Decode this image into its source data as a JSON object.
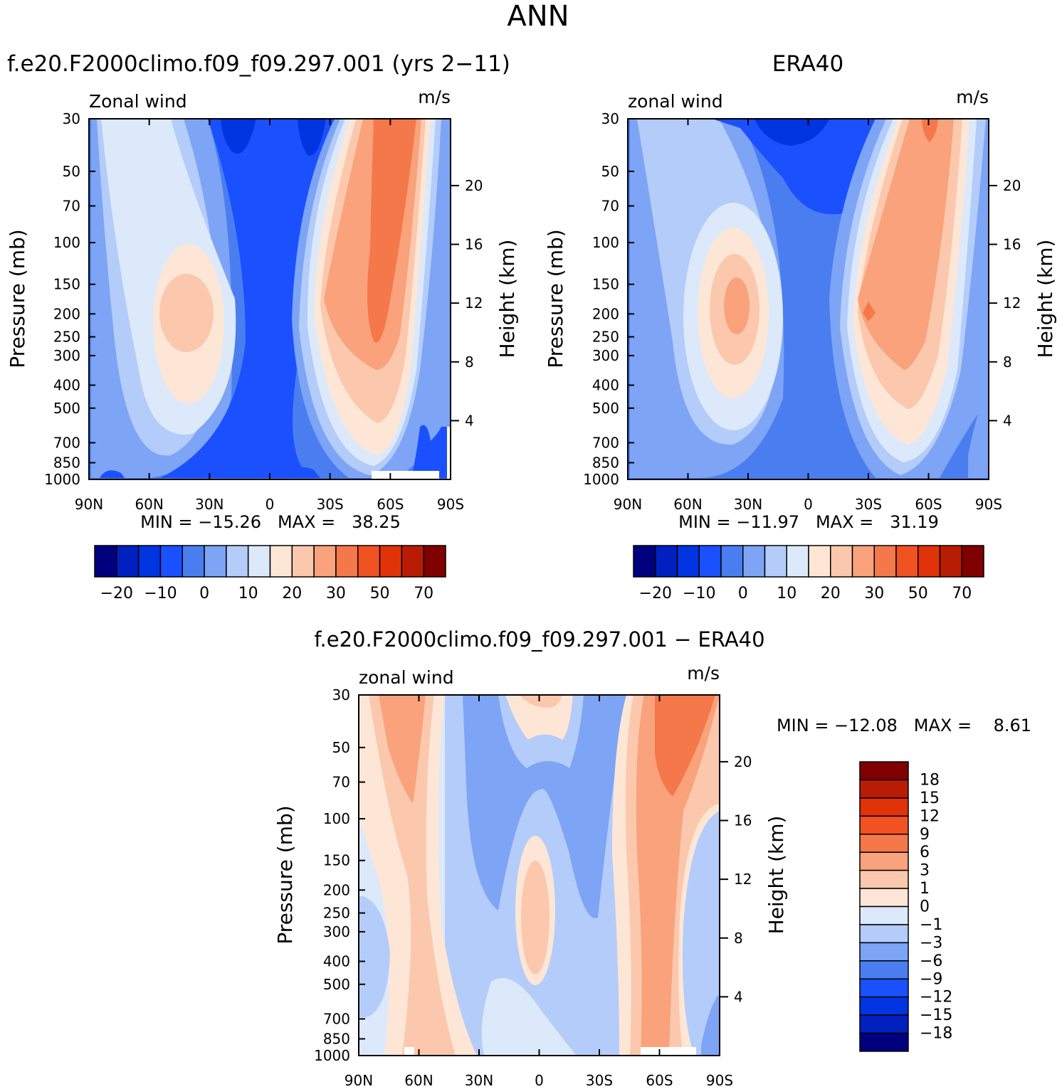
{
  "main_title": "ANN",
  "panels": [
    {
      "id": "model",
      "title": "f.e20.F2000climo.f09_f09.297.001 (yrs 2−11)",
      "var_label": "Zonal wind",
      "units": "m/s",
      "ylabel": "Pressure (mb)",
      "ylabel_right": "Height (km)",
      "stats": "MIN = −15.26   MAX =   38.25"
    },
    {
      "id": "obs",
      "title": "ERA40",
      "var_label": "zonal wind",
      "units": "m/s",
      "ylabel": "Pressure (mb)",
      "ylabel_right": "Height (km)",
      "stats": "MIN = −11.97   MAX =   31.19"
    },
    {
      "id": "diff",
      "title": "f.e20.F2000climo.f09_f09.297.001 − ERA40",
      "var_label": "zonal wind",
      "units": "m/s",
      "ylabel": "Pressure (mb)",
      "ylabel_right": "Height (km)",
      "stats": "MIN = −12.08   MAX =    8.61"
    }
  ],
  "chart_data": [
    {
      "type": "heatmap",
      "panel": "model",
      "x_ticks": [
        "90N",
        "60N",
        "30N",
        "0",
        "30S",
        "60S",
        "90S"
      ],
      "y_ticks": [
        "30",
        "50",
        "70",
        "100",
        "150",
        "200",
        "250",
        "300",
        "400",
        "500",
        "700",
        "850",
        "1000"
      ],
      "height_ticks": [
        "20",
        "16",
        "12",
        "8",
        "4"
      ],
      "y_scale": "log",
      "ylim": [
        1000,
        30
      ],
      "colorbar": {
        "orientation": "horizontal",
        "tick_labels": [
          "−20",
          "−10",
          "0",
          "10",
          "20",
          "30",
          "50",
          "70"
        ],
        "colors": [
          "#00007f",
          "#0020c0",
          "#0034e0",
          "#1a50ff",
          "#4a7ef0",
          "#7da4f5",
          "#b3ccfa",
          "#dce9fb",
          "#fde6d6",
          "#fcc8ad",
          "#f9a27c",
          "#f5784a",
          "#f05222",
          "#e0330a",
          "#b81c05",
          "#800000"
        ]
      },
      "min": -15.26,
      "max": 38.25
    },
    {
      "type": "heatmap",
      "panel": "obs",
      "x_ticks": [
        "90N",
        "60N",
        "30N",
        "0",
        "30S",
        "60S",
        "90S"
      ],
      "y_ticks": [
        "30",
        "50",
        "70",
        "100",
        "150",
        "200",
        "250",
        "300",
        "400",
        "500",
        "700",
        "850",
        "1000"
      ],
      "height_ticks": [
        "20",
        "16",
        "12",
        "8",
        "4"
      ],
      "y_scale": "log",
      "ylim": [
        1000,
        30
      ],
      "colorbar": {
        "orientation": "horizontal",
        "tick_labels": [
          "−20",
          "−10",
          "0",
          "10",
          "20",
          "30",
          "50",
          "70"
        ],
        "colors": [
          "#00007f",
          "#0020c0",
          "#0034e0",
          "#1a50ff",
          "#4a7ef0",
          "#7da4f5",
          "#b3ccfa",
          "#dce9fb",
          "#fde6d6",
          "#fcc8ad",
          "#f9a27c",
          "#f5784a",
          "#f05222",
          "#e0330a",
          "#b81c05",
          "#800000"
        ]
      },
      "min": -11.97,
      "max": 31.19
    },
    {
      "type": "heatmap",
      "panel": "diff",
      "x_ticks": [
        "90N",
        "60N",
        "30N",
        "0",
        "30S",
        "60S",
        "90S"
      ],
      "y_ticks": [
        "30",
        "50",
        "70",
        "100",
        "150",
        "200",
        "250",
        "300",
        "400",
        "500",
        "700",
        "850",
        "1000"
      ],
      "height_ticks": [
        "20",
        "16",
        "12",
        "8",
        "4"
      ],
      "y_scale": "log",
      "ylim": [
        1000,
        30
      ],
      "colorbar": {
        "orientation": "vertical",
        "tick_labels": [
          "18",
          "15",
          "12",
          "9",
          "6",
          "3",
          "1",
          "0",
          "−1",
          "−3",
          "−6",
          "−9",
          "−12",
          "−15",
          "−18"
        ],
        "colors": [
          "#800000",
          "#b81c05",
          "#e0330a",
          "#f05222",
          "#f5784a",
          "#f9a27c",
          "#fcc8ad",
          "#fde6d6",
          "#dce9fb",
          "#b3ccfa",
          "#7da4f5",
          "#4a7ef0",
          "#1a50ff",
          "#0034e0",
          "#0020c0",
          "#00007f"
        ]
      },
      "min": -12.08,
      "max": 8.61
    }
  ]
}
